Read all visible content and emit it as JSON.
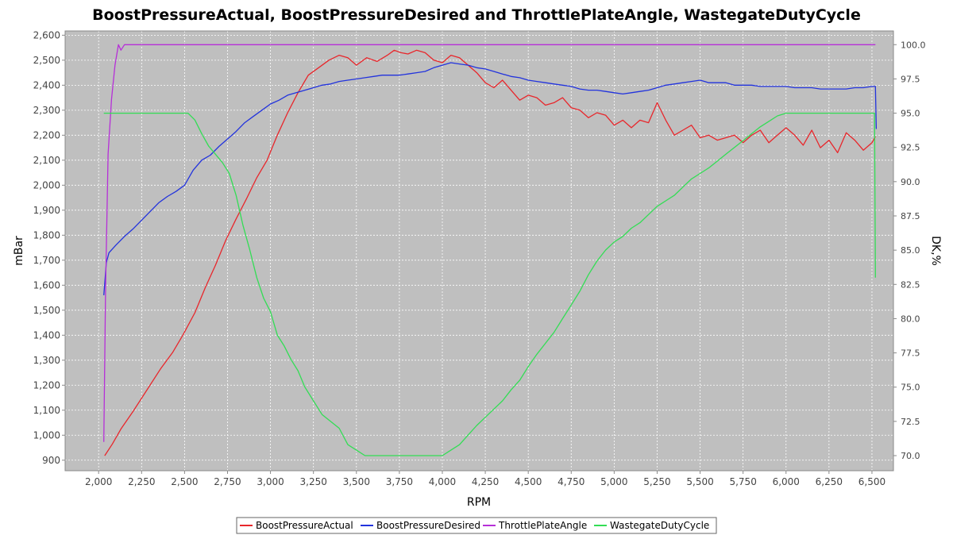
{
  "chart_data": {
    "type": "line",
    "title": "BoostPressureActual, BoostPressureDesired and ThrottlePlateAngle, WastegateDutyCycle",
    "xlabel": "RPM",
    "ylabel": "mBar",
    "y2label": "DK,%",
    "xlim": [
      1805,
      6625
    ],
    "ylim": [
      858,
      2617
    ],
    "y2lim": [
      68.9,
      101.0
    ],
    "x_ticks": [
      2000,
      2250,
      2500,
      2750,
      3000,
      3250,
      3500,
      3750,
      4000,
      4250,
      4500,
      4750,
      5000,
      5250,
      5500,
      5750,
      6000,
      6250,
      6500
    ],
    "x_tick_labels": [
      "2,000",
      "2,250",
      "2,500",
      "2,750",
      "3,000",
      "3,250",
      "3,500",
      "3,750",
      "4,000",
      "4,250",
      "4,500",
      "4,750",
      "5,000",
      "5,250",
      "5,500",
      "5,750",
      "6,000",
      "6,250",
      "6,500"
    ],
    "y_ticks": [
      900,
      1000,
      1100,
      1200,
      1300,
      1400,
      1500,
      1600,
      1700,
      1800,
      1900,
      2000,
      2100,
      2200,
      2300,
      2400,
      2500,
      2600
    ],
    "y_tick_labels": [
      "900",
      "1,000",
      "1,100",
      "1,200",
      "1,300",
      "1,400",
      "1,500",
      "1,600",
      "1,700",
      "1,800",
      "1,900",
      "2,000",
      "2,100",
      "2,200",
      "2,300",
      "2,400",
      "2,500",
      "2,600"
    ],
    "y2_ticks": [
      70.0,
      72.5,
      75.0,
      77.5,
      80.0,
      82.5,
      85.0,
      87.5,
      90.0,
      92.5,
      95.0,
      97.5,
      100.0
    ],
    "y2_tick_labels": [
      "70.0",
      "72.5",
      "75.0",
      "77.5",
      "80.0",
      "82.5",
      "85.0",
      "87.5",
      "90.0",
      "92.5",
      "95.0",
      "97.5",
      "100.0"
    ],
    "grid": true,
    "legend_position": "bottom-center",
    "series": [
      {
        "name": "BoostPressureActual",
        "color": "#e8262b",
        "axis": "left",
        "x": [
          2035,
          2080,
          2130,
          2200,
          2280,
          2360,
          2430,
          2490,
          2560,
          2620,
          2680,
          2740,
          2800,
          2860,
          2920,
          2980,
          3040,
          3100,
          3160,
          3220,
          3280,
          3340,
          3400,
          3450,
          3500,
          3560,
          3620,
          3680,
          3720,
          3760,
          3800,
          3850,
          3900,
          3950,
          4000,
          4050,
          4100,
          4150,
          4200,
          4250,
          4300,
          4350,
          4400,
          4450,
          4500,
          4550,
          4600,
          4650,
          4700,
          4750,
          4800,
          4850,
          4900,
          4950,
          5000,
          5050,
          5100,
          5150,
          5200,
          5250,
          5300,
          5350,
          5400,
          5450,
          5500,
          5550,
          5600,
          5650,
          5700,
          5750,
          5800,
          5850,
          5900,
          5950,
          6000,
          6050,
          6100,
          6150,
          6200,
          6250,
          6300,
          6350,
          6400,
          6450,
          6500,
          6520
        ],
        "values": [
          918,
          965,
          1025,
          1095,
          1180,
          1265,
          1330,
          1400,
          1490,
          1590,
          1680,
          1780,
          1865,
          1945,
          2030,
          2100,
          2200,
          2290,
          2370,
          2440,
          2470,
          2500,
          2520,
          2510,
          2480,
          2510,
          2495,
          2520,
          2540,
          2530,
          2525,
          2540,
          2530,
          2500,
          2490,
          2520,
          2510,
          2480,
          2450,
          2410,
          2390,
          2420,
          2380,
          2340,
          2360,
          2350,
          2320,
          2330,
          2350,
          2310,
          2300,
          2270,
          2290,
          2280,
          2240,
          2260,
          2230,
          2260,
          2250,
          2330,
          2260,
          2200,
          2220,
          2240,
          2190,
          2200,
          2180,
          2190,
          2200,
          2170,
          2200,
          2220,
          2170,
          2200,
          2230,
          2200,
          2160,
          2220,
          2150,
          2180,
          2130,
          2210,
          2180,
          2140,
          2170,
          2195
        ]
      },
      {
        "name": "BoostPressureDesired",
        "color": "#2233dd",
        "axis": "left",
        "x": [
          2030,
          2045,
          2060,
          2100,
          2150,
          2200,
          2250,
          2300,
          2350,
          2400,
          2450,
          2500,
          2550,
          2600,
          2650,
          2700,
          2750,
          2800,
          2850,
          2900,
          2950,
          3000,
          3050,
          3100,
          3150,
          3200,
          3250,
          3300,
          3350,
          3400,
          3450,
          3500,
          3550,
          3600,
          3650,
          3700,
          3750,
          3800,
          3850,
          3900,
          3950,
          4000,
          4050,
          4100,
          4150,
          4200,
          4250,
          4300,
          4350,
          4400,
          4450,
          4500,
          4550,
          4600,
          4650,
          4700,
          4750,
          4800,
          4850,
          4900,
          4950,
          5000,
          5050,
          5100,
          5150,
          5200,
          5250,
          5300,
          5350,
          5400,
          5450,
          5500,
          5550,
          5600,
          5650,
          5700,
          5750,
          5800,
          5850,
          5900,
          5950,
          6000,
          6050,
          6100,
          6150,
          6200,
          6250,
          6300,
          6350,
          6400,
          6450,
          6500,
          6520,
          6525
        ],
        "values": [
          1560,
          1690,
          1730,
          1760,
          1795,
          1825,
          1860,
          1895,
          1930,
          1955,
          1975,
          2000,
          2060,
          2100,
          2120,
          2155,
          2185,
          2215,
          2250,
          2275,
          2300,
          2325,
          2340,
          2360,
          2370,
          2380,
          2390,
          2400,
          2405,
          2415,
          2420,
          2425,
          2430,
          2435,
          2440,
          2440,
          2440,
          2445,
          2450,
          2455,
          2470,
          2480,
          2490,
          2485,
          2480,
          2470,
          2465,
          2455,
          2445,
          2435,
          2430,
          2420,
          2415,
          2410,
          2405,
          2400,
          2395,
          2385,
          2380,
          2380,
          2375,
          2370,
          2365,
          2370,
          2375,
          2380,
          2390,
          2400,
          2405,
          2410,
          2415,
          2420,
          2410,
          2410,
          2410,
          2400,
          2400,
          2400,
          2395,
          2395,
          2395,
          2395,
          2390,
          2390,
          2390,
          2385,
          2385,
          2385,
          2385,
          2390,
          2390,
          2395,
          2395,
          2225
        ]
      },
      {
        "name": "ThrottlePlateAngle",
        "color": "#b62fd8",
        "axis": "right",
        "x": [
          2030,
          2040,
          2055,
          2075,
          2095,
          2115,
          2130,
          2150,
          2200,
          2300,
          2500,
          3000,
          3500,
          4000,
          4500,
          5000,
          5500,
          6000,
          6520
        ],
        "values": [
          71.0,
          82.0,
          92.0,
          96.0,
          98.5,
          100.0,
          99.6,
          100.0,
          100.0,
          100.0,
          100.0,
          100.0,
          100.0,
          100.0,
          100.0,
          100.0,
          100.0,
          100.0,
          100.0
        ]
      },
      {
        "name": "WastegateDutyCycle",
        "color": "#33dd55",
        "axis": "right",
        "x": [
          2030,
          2520,
          2560,
          2600,
          2640,
          2680,
          2720,
          2760,
          2800,
          2840,
          2880,
          2920,
          2960,
          3000,
          3040,
          3080,
          3120,
          3160,
          3200,
          3250,
          3300,
          3350,
          3400,
          3450,
          3500,
          3550,
          3600,
          3700,
          3800,
          3900,
          4000,
          4050,
          4100,
          4150,
          4200,
          4250,
          4300,
          4350,
          4400,
          4450,
          4500,
          4550,
          4600,
          4650,
          4700,
          4750,
          4800,
          4850,
          4900,
          4950,
          5000,
          5050,
          5100,
          5150,
          5200,
          5250,
          5300,
          5350,
          5400,
          5450,
          5500,
          5550,
          5600,
          5650,
          5700,
          5750,
          5800,
          5850,
          5900,
          5950,
          6000,
          6050,
          6100,
          6200,
          6300,
          6400,
          6500,
          6515,
          6520
        ],
        "values": [
          95.0,
          95.0,
          94.5,
          93.5,
          92.6,
          92.0,
          91.4,
          90.6,
          89.0,
          86.8,
          85.0,
          83.0,
          81.5,
          80.5,
          78.8,
          78.0,
          77.0,
          76.2,
          75.0,
          74.0,
          73.0,
          72.5,
          72.0,
          70.8,
          70.4,
          70.0,
          70.0,
          70.0,
          70.0,
          70.0,
          70.0,
          70.4,
          70.8,
          71.5,
          72.2,
          72.8,
          73.4,
          74.0,
          74.8,
          75.5,
          76.5,
          77.4,
          78.2,
          79.0,
          80.0,
          81.0,
          82.0,
          83.2,
          84.2,
          85.0,
          85.6,
          86.0,
          86.6,
          87.0,
          87.6,
          88.2,
          88.6,
          89.0,
          89.6,
          90.2,
          90.6,
          91.0,
          91.5,
          92.0,
          92.5,
          93.0,
          93.5,
          94.0,
          94.4,
          94.8,
          95.0,
          95.0,
          95.0,
          95.0,
          95.0,
          95.0,
          95.0,
          95.0,
          83.0
        ]
      }
    ]
  }
}
